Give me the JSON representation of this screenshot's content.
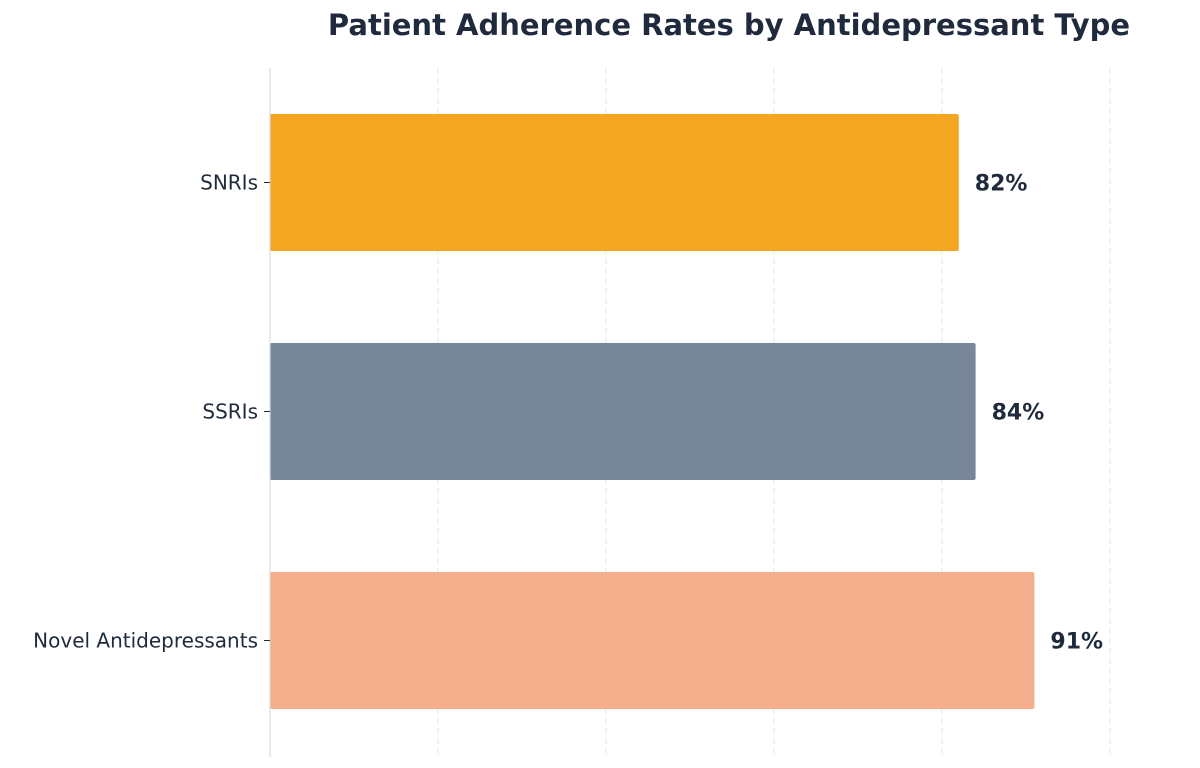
{
  "chart_data": {
    "type": "bar",
    "orientation": "horizontal",
    "title": "Patient Adherence Rates by Antidepressant Type",
    "xlabel": "",
    "ylabel": "",
    "categories": [
      "SNRIs",
      "SSRIs",
      "Novel Antidepressants"
    ],
    "values": [
      82,
      84,
      91
    ],
    "value_labels": [
      "82%",
      "84%",
      "91%"
    ],
    "xlim": [
      0,
      100
    ],
    "grid": true,
    "legend": "none",
    "colors": [
      "#f4a623",
      "#778799",
      "#f5ae8b"
    ],
    "text_color": "#1f2a3d"
  }
}
